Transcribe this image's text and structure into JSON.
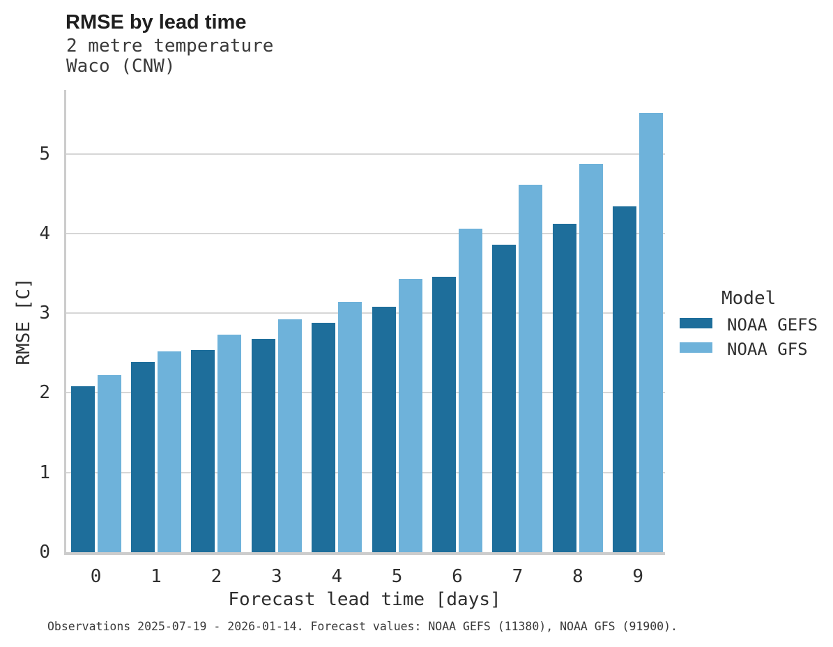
{
  "chart_data": {
    "type": "bar",
    "title": "RMSE by lead time",
    "subtitle_lines": [
      "2 metre temperature",
      "Waco (CNW)"
    ],
    "xlabel": "Forecast lead time [days]",
    "ylabel": "RMSE [C]",
    "categories": [
      "0",
      "1",
      "2",
      "3",
      "4",
      "5",
      "6",
      "7",
      "8",
      "9"
    ],
    "series": [
      {
        "name": "NOAA GEFS",
        "color": "#1E6E9B",
        "values": [
          2.08,
          2.39,
          2.54,
          2.68,
          2.88,
          3.08,
          3.46,
          3.86,
          4.12,
          4.34
        ]
      },
      {
        "name": "NOAA GFS",
        "color": "#6EB2DA",
        "values": [
          2.22,
          2.52,
          2.73,
          2.92,
          3.14,
          3.43,
          4.06,
          4.61,
          4.87,
          5.51
        ]
      }
    ],
    "ylim": [
      0,
      5.8
    ],
    "yticks": [
      0,
      1,
      2,
      3,
      4,
      5
    ],
    "grid": "horizontal",
    "legend": {
      "title": "Model",
      "position": "right-center"
    },
    "caption": "Observations 2025-07-19 - 2026-01-14. Forecast values: NOAA GEFS (11380), NOAA GFS (91900)."
  },
  "colors": {
    "grid": "#d6d6d6",
    "axis": "#cccccc",
    "text": "#2e2e2e"
  }
}
